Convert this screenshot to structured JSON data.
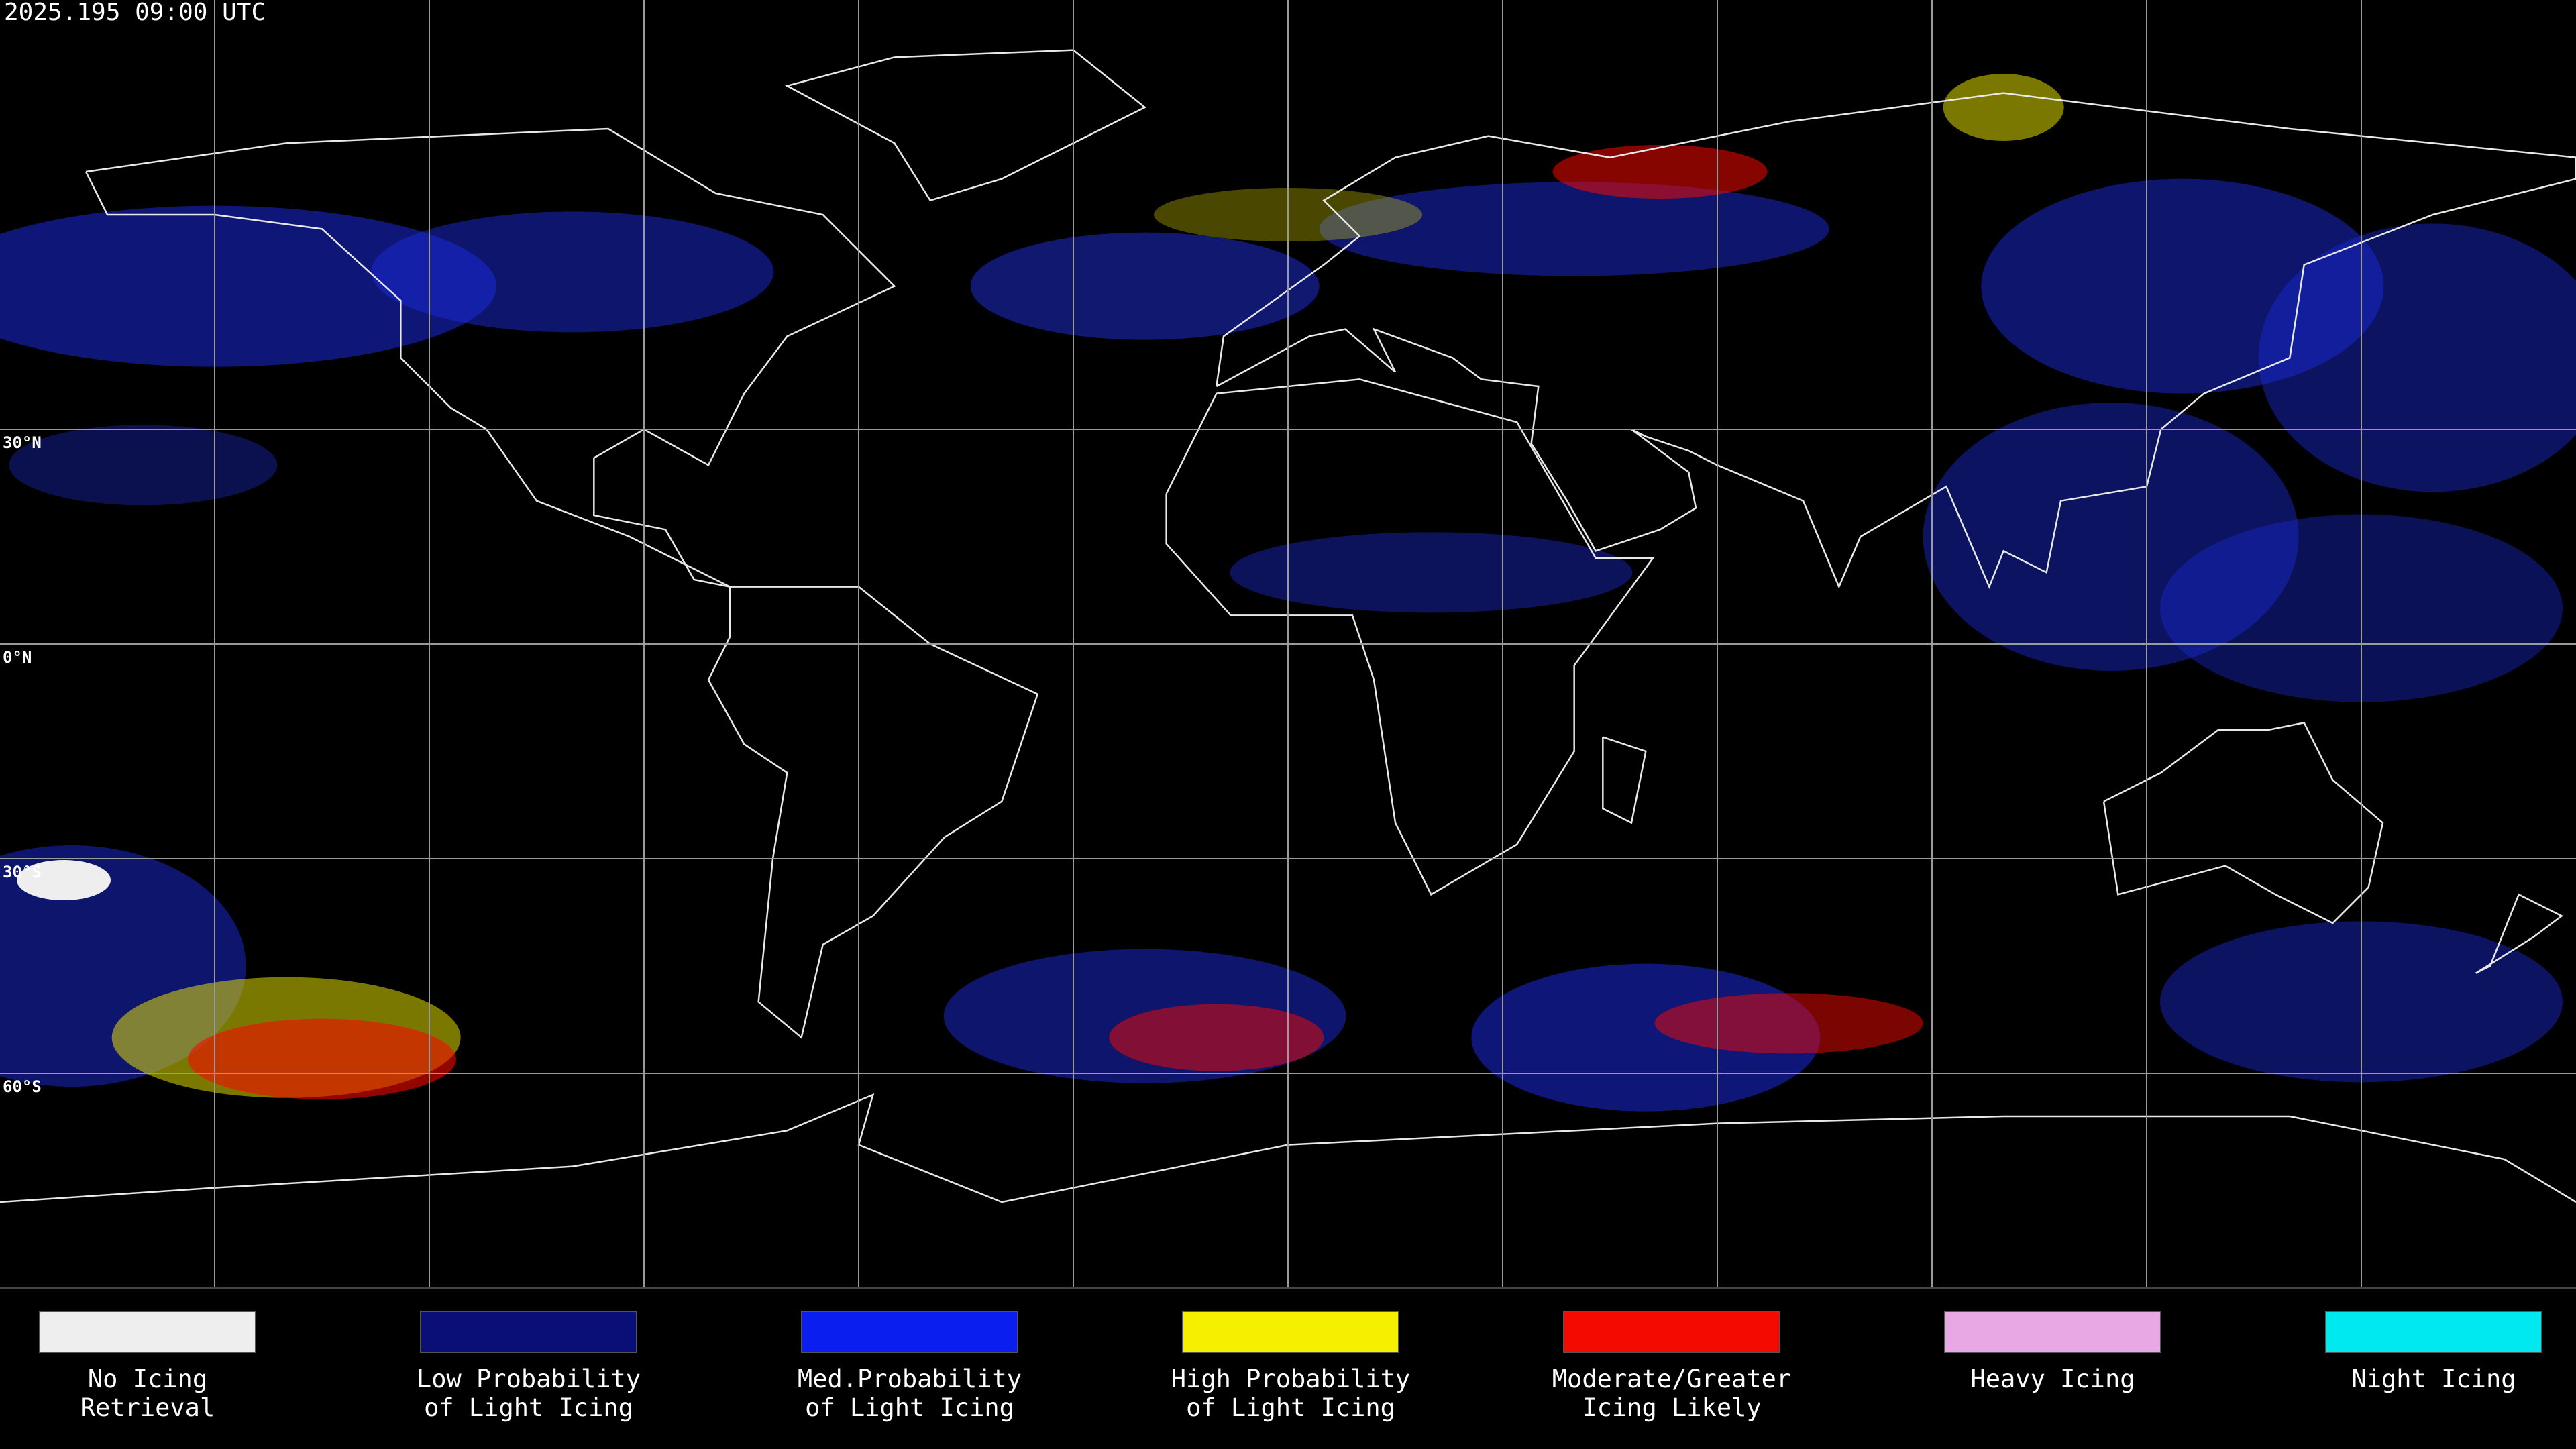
{
  "header": {
    "title": "2025.195 09:00 UTC"
  },
  "latitude_labels": [
    "30°N",
    "0°N",
    "30°S",
    "60°S"
  ],
  "legend": [
    {
      "label": [
        "No Icing",
        "Retrieval"
      ],
      "color": "#eeeeee"
    },
    {
      "label": [
        "Low Probability",
        "of Light Icing"
      ],
      "color": "#0a0f78"
    },
    {
      "label": [
        "Med.Probability",
        "of Light Icing"
      ],
      "color": "#0a1ef0"
    },
    {
      "label": [
        "High Probability",
        "of Light Icing"
      ],
      "color": "#f5f000"
    },
    {
      "label": [
        "Moderate/Greater",
        "Icing Likely"
      ],
      "color": "#f50a00"
    },
    {
      "label": [
        "Heavy Icing"
      ],
      "color": "#e8a8e4"
    },
    {
      "label": [
        "Night Icing"
      ],
      "color": "#00e8f0"
    }
  ]
}
